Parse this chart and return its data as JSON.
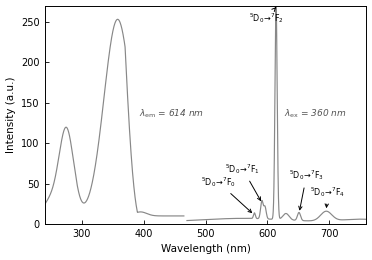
{
  "xlabel": "Wavelength (nm)",
  "ylabel": "Intensity (a.u.)",
  "xlim": [
    240,
    760
  ],
  "ylim": [
    0,
    270
  ],
  "yticks": [
    0,
    50,
    100,
    150,
    200,
    250
  ],
  "xticks": [
    300,
    400,
    500,
    600,
    700
  ],
  "background_color": "#ffffff",
  "line_color": "#888888",
  "exc_xlim": [
    240,
    465
  ],
  "em_xlim": [
    470,
    760
  ]
}
